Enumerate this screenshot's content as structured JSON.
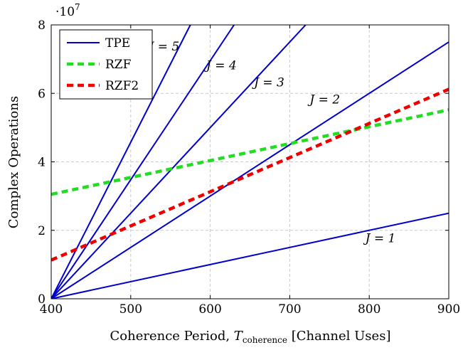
{
  "chart_data": {
    "type": "line",
    "title": "",
    "xlabel": "Coherence Period, T_coherence [Channel Uses]",
    "xlabel_parts": {
      "main": "Coherence Period, ",
      "var": "T",
      "sub": "coherence",
      "rest": " [Channel Uses]"
    },
    "ylabel": "Complex Operations",
    "y_multiplier": "·10",
    "y_multiplier_exp": "7",
    "xlim": [
      400,
      900
    ],
    "ylim": [
      0,
      8
    ],
    "xticks": [
      400,
      500,
      600,
      700,
      800,
      900
    ],
    "yticks": [
      0,
      2,
      4,
      6,
      8
    ],
    "grid": true,
    "legend_position": "top-left",
    "series": [
      {
        "name": "TPE",
        "color": "#0000cc",
        "style": "solid",
        "x": [
          400,
          900
        ],
        "y": [
          0,
          2.5
        ],
        "annotation": "J = 1",
        "annot_at": [
          795,
          1.65
        ]
      },
      {
        "name": "",
        "color": "#0000cc",
        "style": "solid",
        "x": [
          400,
          900
        ],
        "y": [
          0,
          7.5
        ],
        "annotation": "J = 2",
        "annot_at": [
          725,
          5.7
        ]
      },
      {
        "name": "",
        "color": "#0000cc",
        "style": "solid",
        "x": [
          400,
          720
        ],
        "y": [
          0,
          8.0
        ],
        "annotation": "J = 3",
        "annot_at": [
          655,
          6.2
        ]
      },
      {
        "name": "",
        "color": "#0000cc",
        "style": "solid",
        "x": [
          400,
          630
        ],
        "y": [
          0,
          8.0
        ],
        "annotation": "J = 4",
        "annot_at": [
          595,
          6.7
        ]
      },
      {
        "name": "",
        "color": "#0000cc",
        "style": "solid",
        "x": [
          400,
          575
        ],
        "y": [
          0,
          8.0
        ],
        "annotation": "J = 5",
        "annot_at": [
          523,
          7.25
        ]
      },
      {
        "name": "RZF",
        "color": "#22dd22",
        "style": "dashed",
        "x": [
          400,
          900
        ],
        "y": [
          3.05,
          5.52
        ]
      },
      {
        "name": "RZF2",
        "color": "#ee0000",
        "style": "dashed",
        "x": [
          400,
          900
        ],
        "y": [
          1.13,
          6.12
        ]
      }
    ]
  }
}
